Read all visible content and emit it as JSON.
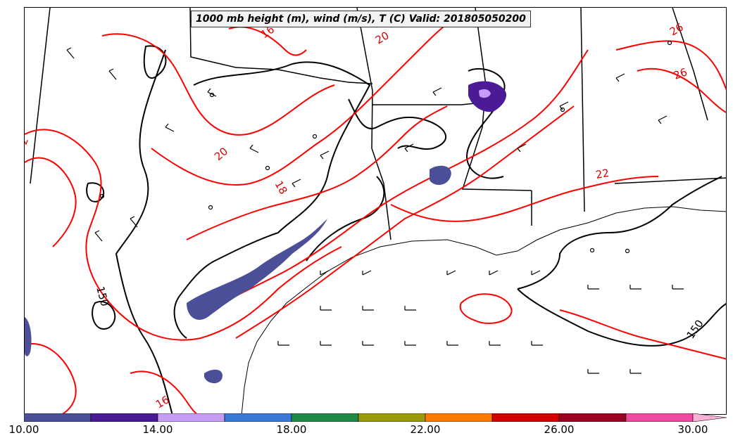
{
  "title": "1000 mb height (m), wind (m/s), T (C) Valid: 201805050200",
  "colorbar": {
    "ticks": [
      "10.00",
      "14.00",
      "18.00",
      "22.00",
      "26.00",
      "30.00"
    ],
    "colors": [
      "#4a4f98",
      "#4b1a96",
      "#c79cf5",
      "#3a78d8",
      "#1f8a47",
      "#9a9a0a",
      "#ff7b00",
      "#d40000",
      "#9a0024",
      "#ee4aa0",
      "#f7b0d6"
    ]
  },
  "contour_labels": {
    "temperature": [
      "16",
      "18",
      "20",
      "20",
      "22",
      "26",
      "26",
      "16",
      "2"
    ],
    "height": [
      "150",
      "150"
    ]
  },
  "colors": {
    "temperature_contour": "#ff0000",
    "height_contour": "#000000",
    "wind_barb": "#000000"
  }
}
